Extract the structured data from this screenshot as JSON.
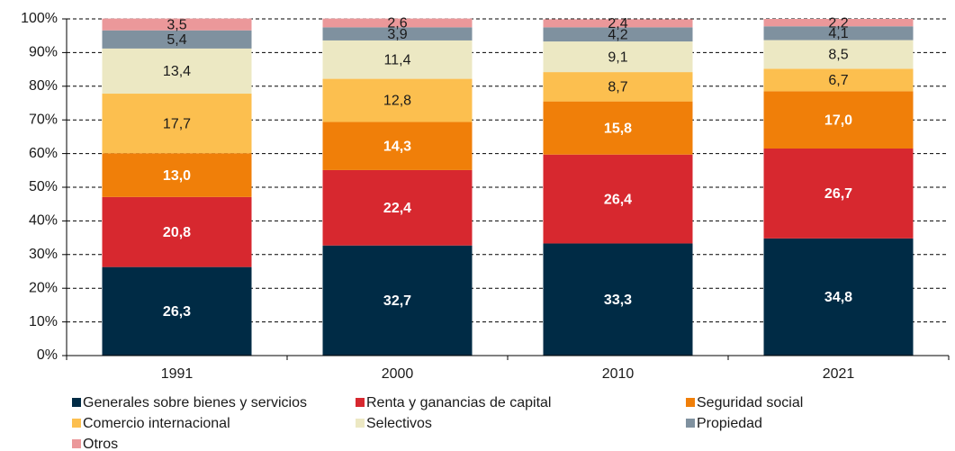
{
  "chart_data": {
    "type": "stacked_bar",
    "categories": [
      "1991",
      "2000",
      "2010",
      "2021"
    ],
    "series": [
      {
        "name": "Generales sobre bienes y servicios",
        "color": "#002b45",
        "label_color": "#ffffff",
        "values": [
          26.3,
          32.7,
          33.3,
          34.8
        ],
        "value_labels": [
          "26,3",
          "32,7",
          "33,3",
          "34,8"
        ]
      },
      {
        "name": "Renta y ganancias de capital",
        "color": "#d7282f",
        "label_color": "#ffffff",
        "values": [
          20.8,
          22.4,
          26.4,
          26.7
        ],
        "value_labels": [
          "20,8",
          "22,4",
          "26,4",
          "26,7"
        ]
      },
      {
        "name": "Seguridad social",
        "color": "#f07f09",
        "label_color": "#ffffff",
        "values": [
          13.0,
          14.3,
          15.8,
          17.0
        ],
        "value_labels": [
          "13,0",
          "14,3",
          "15,8",
          "17,0"
        ]
      },
      {
        "name": "Comercio internacional",
        "color": "#fcbf4f",
        "label_color": "#1a1a1a",
        "values": [
          17.7,
          12.8,
          8.7,
          6.7
        ],
        "value_labels": [
          "17,7",
          "12,8",
          "8,7",
          "6,7"
        ]
      },
      {
        "name": "Selectivos",
        "color": "#ece8c3",
        "label_color": "#1a1a1a",
        "values": [
          13.4,
          11.4,
          9.1,
          8.5
        ],
        "value_labels": [
          "13,4",
          "11,4",
          "9,1",
          "8,5"
        ]
      },
      {
        "name": "Propiedad",
        "color": "#7f919f",
        "label_color": "#1a1a1a",
        "values": [
          5.4,
          3.9,
          4.2,
          4.1
        ],
        "value_labels": [
          "5,4",
          "3,9",
          "4,2",
          "4,1"
        ]
      },
      {
        "name": "Otros",
        "color": "#eb989a",
        "label_color": "#1a1a1a",
        "values": [
          3.5,
          2.6,
          2.4,
          2.2
        ],
        "value_labels": [
          "3,5",
          "2,6",
          "2,4",
          "2,2"
        ]
      }
    ],
    "ylim": [
      0,
      100
    ],
    "yticks": [
      {
        "value": 0,
        "label": "0%"
      },
      {
        "value": 10,
        "label": "10%"
      },
      {
        "value": 20,
        "label": "20%"
      },
      {
        "value": 30,
        "label": "30%"
      },
      {
        "value": 40,
        "label": "40%"
      },
      {
        "value": 50,
        "label": "50%"
      },
      {
        "value": 60,
        "label": "60%"
      },
      {
        "value": 70,
        "label": "70%"
      },
      {
        "value": 80,
        "label": "80%"
      },
      {
        "value": 90,
        "label": "90%"
      },
      {
        "value": 100,
        "label": "100%"
      }
    ],
    "grid": true
  }
}
